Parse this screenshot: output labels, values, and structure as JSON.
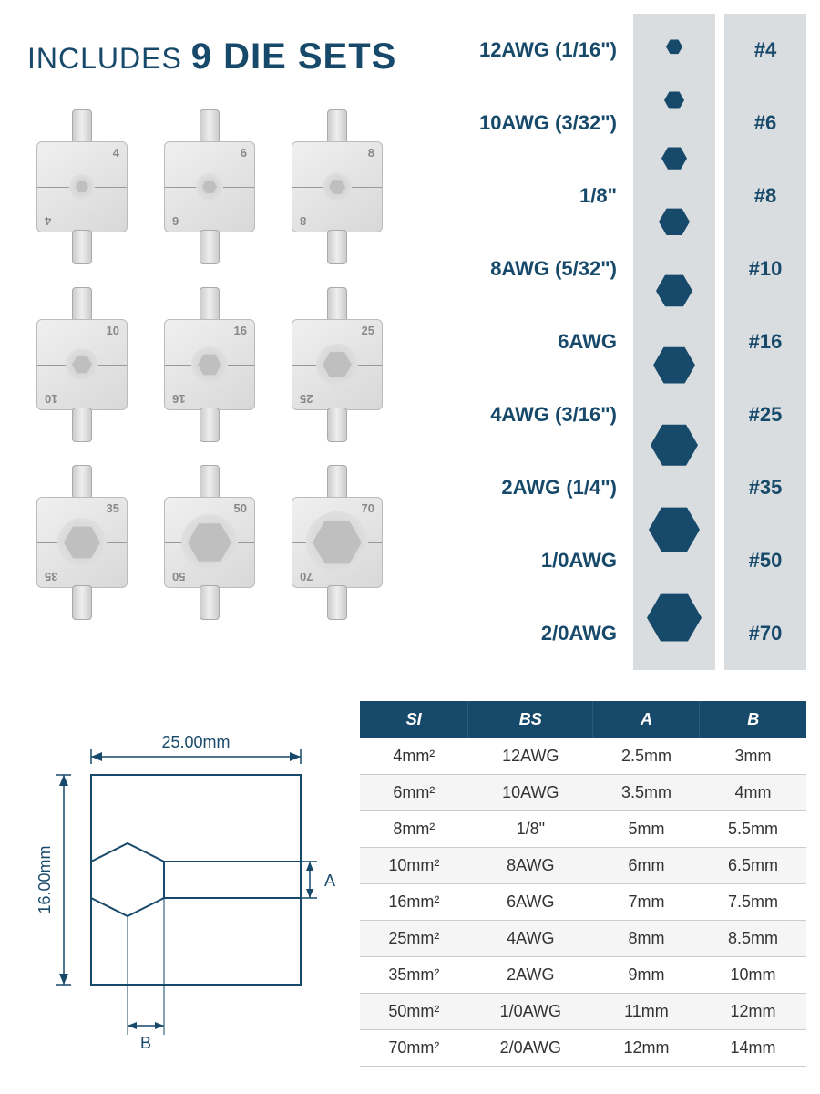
{
  "title": {
    "prefix": "INCLUDES",
    "bold": "9 DIE SETS",
    "color": "#17496a"
  },
  "dies": [
    {
      "num": "4",
      "hex_outer": 28,
      "hex_inner": 14
    },
    {
      "num": "6",
      "hex_outer": 30,
      "hex_inner": 16
    },
    {
      "num": "8",
      "hex_outer": 32,
      "hex_inner": 18
    },
    {
      "num": "10",
      "hex_outer": 36,
      "hex_inner": 22
    },
    {
      "num": "16",
      "hex_outer": 40,
      "hex_inner": 26
    },
    {
      "num": "25",
      "hex_outer": 46,
      "hex_inner": 32
    },
    {
      "num": "35",
      "hex_outer": 54,
      "hex_inner": 40
    },
    {
      "num": "50",
      "hex_outer": 62,
      "hex_inner": 48
    },
    {
      "num": "70",
      "hex_outer": 68,
      "hex_inner": 54
    }
  ],
  "size_list": {
    "bg_color": "#d9dde0",
    "hex_color": "#17496a",
    "text_color": "#17496a",
    "rows": [
      {
        "label": "12AWG (1/16\")",
        "hex_size": 18,
        "num": "#4"
      },
      {
        "label": "10AWG (3/32\")",
        "hex_size": 22,
        "num": "#6"
      },
      {
        "label": "1/8\"",
        "hex_size": 28,
        "num": "#8"
      },
      {
        "label": "8AWG (5/32\")",
        "hex_size": 34,
        "num": "#10"
      },
      {
        "label": "6AWG",
        "hex_size": 40,
        "num": "#16"
      },
      {
        "label": "4AWG (3/16\")",
        "hex_size": 46,
        "num": "#25"
      },
      {
        "label": "2AWG (1/4\")",
        "hex_size": 52,
        "num": "#35"
      },
      {
        "label": "1/0AWG",
        "hex_size": 56,
        "num": "#50"
      },
      {
        "label": "2/0AWG",
        "hex_size": 60,
        "num": "#70"
      }
    ]
  },
  "diagram": {
    "width_label": "25.00mm",
    "height_label": "16.00mm",
    "a_label": "A",
    "b_label": "B",
    "line_color": "#17496a"
  },
  "spec_table": {
    "header_bg": "#17496a",
    "header_fg": "#ffffff",
    "columns": [
      "SI",
      "BS",
      "A",
      "B"
    ],
    "rows": [
      [
        "4mm²",
        "12AWG",
        "2.5mm",
        "3mm"
      ],
      [
        "6mm²",
        "10AWG",
        "3.5mm",
        "4mm"
      ],
      [
        "8mm²",
        "1/8\"",
        "5mm",
        "5.5mm"
      ],
      [
        "10mm²",
        "8AWG",
        "6mm",
        "6.5mm"
      ],
      [
        "16mm²",
        "6AWG",
        "7mm",
        "7.5mm"
      ],
      [
        "25mm²",
        "4AWG",
        "8mm",
        "8.5mm"
      ],
      [
        "35mm²",
        "2AWG",
        "9mm",
        "10mm"
      ],
      [
        "50mm²",
        "1/0AWG",
        "11mm",
        "12mm"
      ],
      [
        "70mm²",
        "2/0AWG",
        "12mm",
        "14mm"
      ]
    ]
  }
}
